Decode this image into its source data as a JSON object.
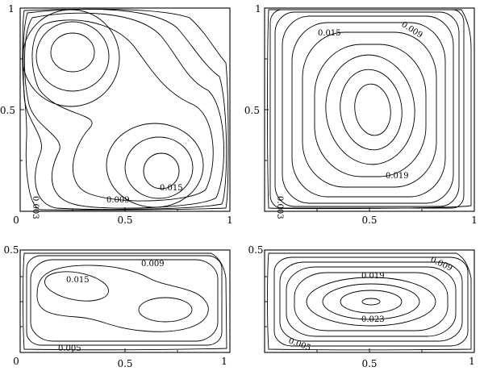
{
  "panels": [
    {
      "id": "top-left",
      "x_ticks": [
        "0",
        "0.5",
        "1"
      ],
      "y_ticks": [
        "0.5",
        "1"
      ],
      "contour_labels": [
        "0.015",
        "0.009",
        "0.003"
      ]
    },
    {
      "id": "top-right",
      "x_ticks": [
        "0.5",
        "1"
      ],
      "y_ticks": [
        "0.5",
        "1"
      ],
      "contour_labels": [
        "0.015",
        "0.009",
        "0.019",
        "0.003"
      ]
    },
    {
      "id": "bottom-left",
      "x_ticks": [
        "0",
        "0.5",
        "1"
      ],
      "y_ticks": [
        "0.5"
      ],
      "contour_labels": [
        "0.015",
        "0.009",
        "0.005"
      ]
    },
    {
      "id": "bottom-right",
      "x_ticks": [
        "0.5",
        "1"
      ],
      "y_ticks": [
        "0.5"
      ],
      "contour_labels": [
        "0.019",
        "0.009",
        "0.023",
        "0.005"
      ]
    }
  ]
}
